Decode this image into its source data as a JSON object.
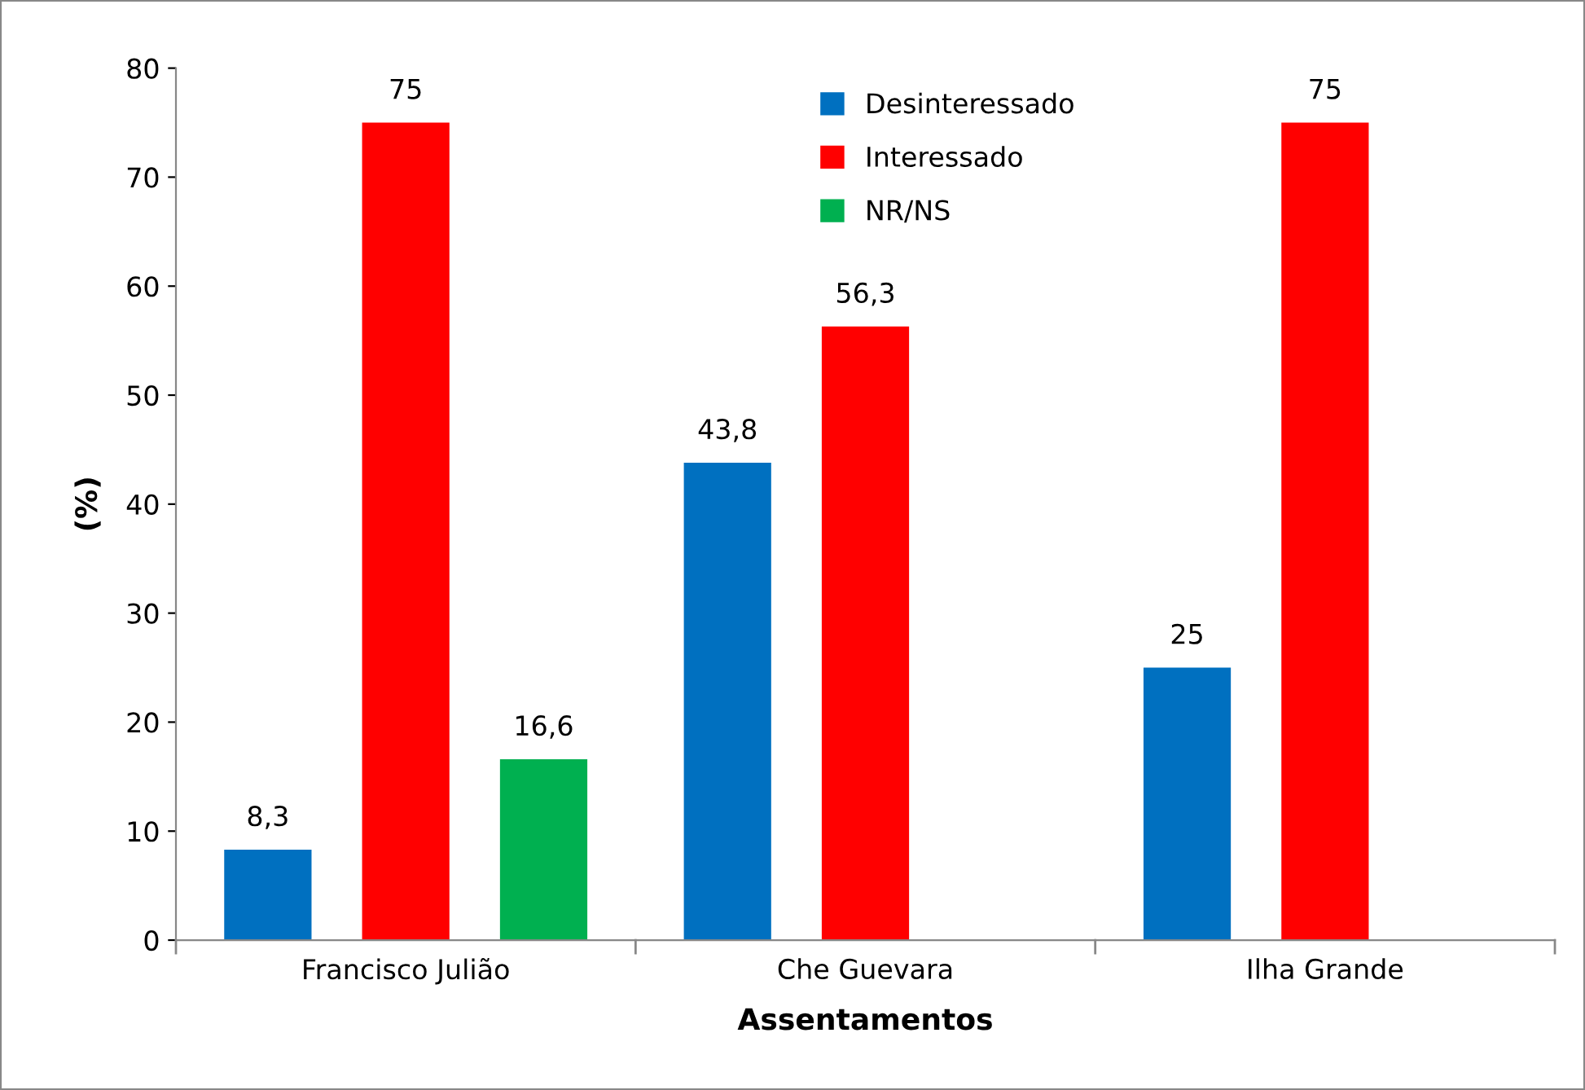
{
  "chart_data": {
    "type": "bar",
    "xlabel": "Assentamentos",
    "ylabel": "(%)",
    "categories": [
      "Francisco Julião",
      "Che Guevara",
      "Ilha Grande"
    ],
    "series": [
      {
        "name": "Desinteressado",
        "color": "#0070c0",
        "values": [
          8.3,
          43.8,
          25
        ],
        "value_labels": [
          "8,3",
          "43,8",
          "25"
        ]
      },
      {
        "name": "Interessado",
        "color": "#ff0000",
        "values": [
          75,
          56.3,
          75
        ],
        "value_labels": [
          "75",
          "56,3",
          "75"
        ]
      },
      {
        "name": "NR/NS",
        "color": "#00b050",
        "values": [
          16.6,
          null,
          null
        ],
        "value_labels": [
          "16,6",
          null,
          null
        ]
      }
    ],
    "ylim": [
      0,
      80
    ],
    "yticks": [
      0,
      10,
      20,
      30,
      40,
      50,
      60,
      70,
      80
    ],
    "grid": false,
    "legend": "top"
  }
}
